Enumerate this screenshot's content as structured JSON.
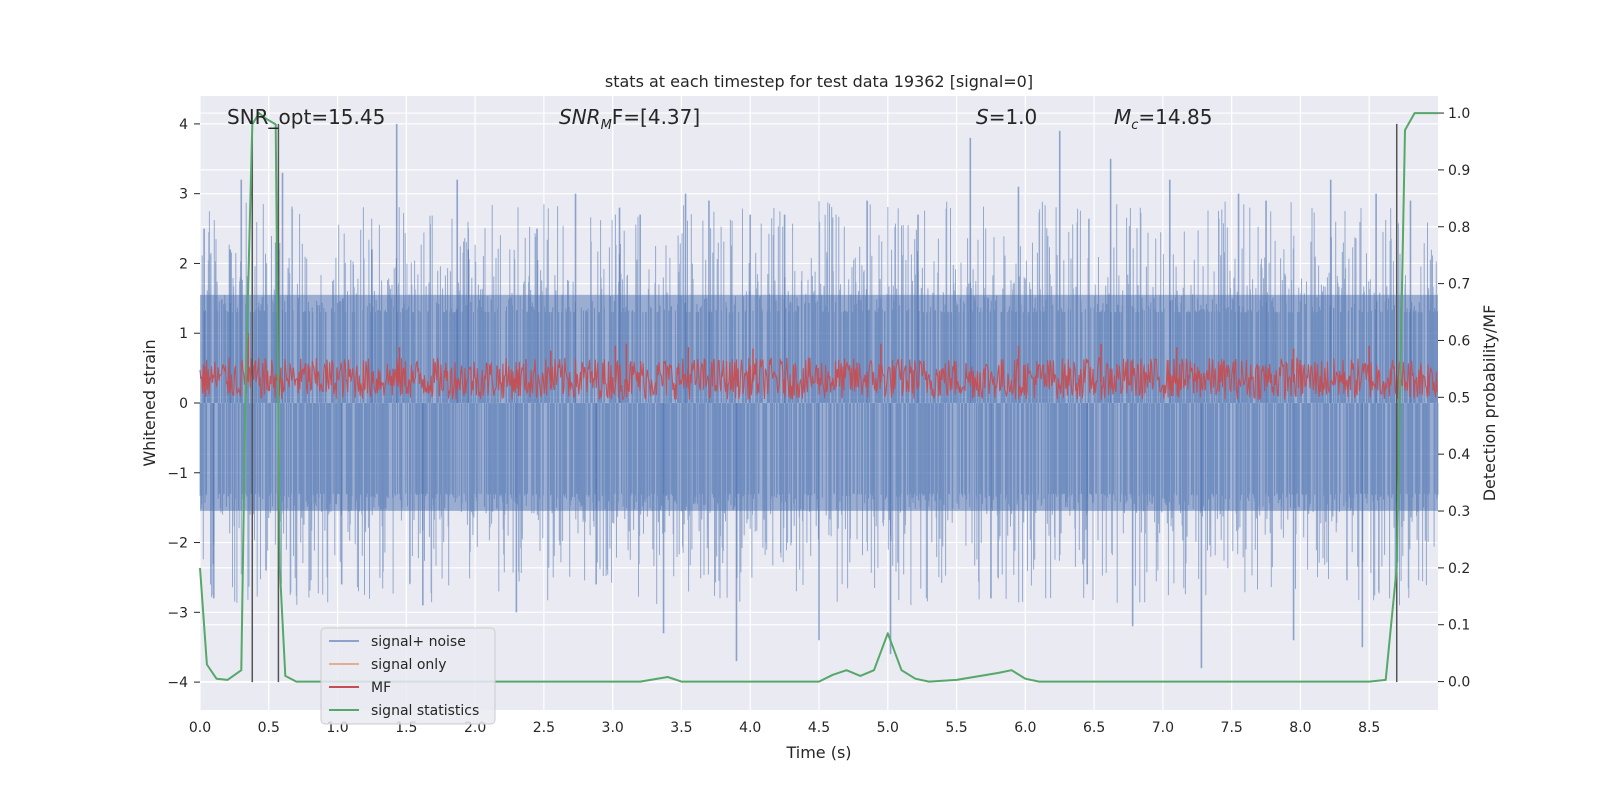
{
  "chart_data": {
    "type": "line",
    "title": "stats at each timestep for test data 19362 [signal=0]",
    "xlabel": "Time (s)",
    "ylabel": "Whitened strain",
    "y2label": "Detection probability/MF",
    "xlim": [
      0.0,
      9.0
    ],
    "ylim": [
      -4.4,
      4.4
    ],
    "y2lim": [
      -0.05,
      1.03
    ],
    "x_ticks": [
      "0.0",
      "0.5",
      "1.0",
      "1.5",
      "2.0",
      "2.5",
      "3.0",
      "3.5",
      "4.0",
      "4.5",
      "5.0",
      "5.5",
      "6.0",
      "6.5",
      "7.0",
      "7.5",
      "8.0",
      "8.5"
    ],
    "y_ticks": [
      "4",
      "3",
      "2",
      "1",
      "0",
      "−1",
      "−2",
      "−3",
      "−4"
    ],
    "y2_ticks": [
      "1.0",
      "0.9",
      "0.8",
      "0.7",
      "0.6",
      "0.5",
      "0.4",
      "0.3",
      "0.2",
      "0.1",
      "0.0"
    ],
    "annotations": {
      "snr_opt": "SNR_opt=15.45",
      "snr_mf_main": "SNR",
      "snr_mf_sub": "M",
      "snr_mf_rest": "F=[4.37]",
      "s_label": "S",
      "s_value": "=1.0",
      "mc_main": "M",
      "mc_sub": "c",
      "mc_value": "=14.85"
    },
    "legend": {
      "position": "lower-left",
      "entries": [
        {
          "name": "signal+ noise",
          "color": "#4c72b0"
        },
        {
          "name": "signal only",
          "color": "#dd8452"
        },
        {
          "name": "MF",
          "color": "#c44e52"
        },
        {
          "name": "signal statistics",
          "color": "#55a868"
        }
      ]
    },
    "vlines_x": [
      0.38,
      0.57,
      8.7
    ],
    "series": [
      {
        "name": "signal statistics",
        "axis": "right",
        "color": "#55a868",
        "x": [
          0.0,
          0.05,
          0.12,
          0.2,
          0.3,
          0.33,
          0.38,
          0.43,
          0.48,
          0.55,
          0.58,
          0.62,
          0.7,
          0.8,
          1.0,
          2.0,
          3.0,
          3.2,
          3.4,
          3.5,
          4.0,
          4.5,
          4.6,
          4.7,
          4.8,
          4.9,
          5.0,
          5.1,
          5.2,
          5.3,
          5.5,
          5.8,
          5.9,
          6.0,
          6.1,
          6.3,
          7.0,
          8.0,
          8.5,
          8.62,
          8.7,
          8.76,
          8.83,
          8.88,
          9.0
        ],
        "y": [
          0.2,
          0.03,
          0.005,
          0.003,
          0.02,
          0.5,
          0.98,
          1.0,
          0.99,
          0.98,
          0.2,
          0.01,
          0.0,
          0.0,
          0.0,
          0.0,
          0.0,
          0.0,
          0.008,
          0.0,
          0.0,
          0.0,
          0.012,
          0.02,
          0.01,
          0.02,
          0.085,
          0.02,
          0.005,
          0.0,
          0.003,
          0.015,
          0.02,
          0.005,
          0.0,
          0.0,
          0.0,
          0.0,
          0.0,
          0.003,
          0.2,
          0.97,
          1.0,
          1.0,
          1.0
        ]
      },
      {
        "name": "signal+ noise",
        "axis": "left",
        "color": "#4c72b0",
        "description_band": {
          "core_min": -1.55,
          "core_max": 1.55
        },
        "spikes_x": [
          0.03,
          0.1,
          0.22,
          0.3,
          0.48,
          0.55,
          0.6,
          1.03,
          1.25,
          1.43,
          1.62,
          1.87,
          1.95,
          2.3,
          2.45,
          2.73,
          2.88,
          3.05,
          3.2,
          3.37,
          3.53,
          3.7,
          3.9,
          4.0,
          4.25,
          4.5,
          4.85,
          5.02,
          5.22,
          5.6,
          5.75,
          5.95,
          6.25,
          6.45,
          6.62,
          6.78,
          7.05,
          7.28,
          7.55,
          7.75,
          7.95,
          8.22,
          8.45,
          8.55,
          8.8
        ],
        "spikes_y": [
          2.5,
          -2.8,
          2.2,
          3.2,
          -2.4,
          2.3,
          3.3,
          -2.6,
          2.2,
          4.0,
          -2.9,
          3.2,
          2.2,
          -3.0,
          2.5,
          3.0,
          -2.6,
          2.8,
          2.7,
          -3.3,
          3.0,
          2.9,
          -3.7,
          2.7,
          2.7,
          -3.4,
          2.9,
          -3.6,
          2.7,
          3.8,
          -2.8,
          3.1,
          3.9,
          -2.6,
          3.5,
          -3.2,
          3.2,
          -3.8,
          3.0,
          2.9,
          -3.4,
          3.2,
          -3.5,
          3.0,
          2.9
        ]
      },
      {
        "name": "MF",
        "axis": "left",
        "color": "#c44e52",
        "description_band": {
          "min": 0.05,
          "max": 0.65
        },
        "spikes_x": [
          0.35,
          1.45,
          2.55,
          3.02,
          3.1,
          3.55,
          4.02,
          4.95,
          5.95,
          6.55,
          7.1,
          7.95,
          8.5
        ],
        "spikes_y": [
          1.0,
          0.8,
          0.75,
          0.82,
          0.85,
          0.8,
          0.78,
          0.85,
          0.82,
          0.85,
          0.8,
          0.78,
          0.82
        ]
      }
    ]
  }
}
